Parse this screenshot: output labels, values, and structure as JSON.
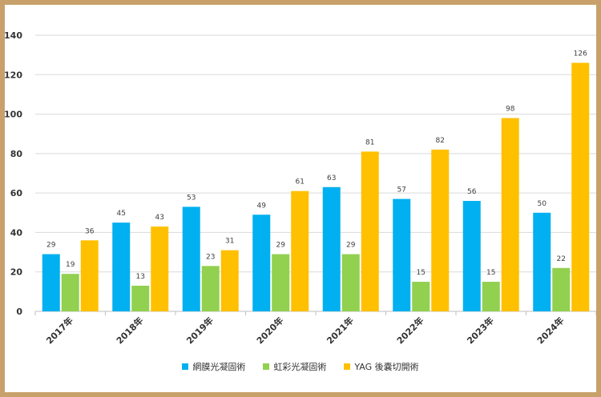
{
  "chart_data": {
    "type": "bar",
    "title": "",
    "xlabel": "",
    "ylabel": "",
    "categories": [
      "2017年",
      "2018年",
      "2019年",
      "2020年",
      "2021年",
      "2022年",
      "2023年",
      "2024年"
    ],
    "series": [
      {
        "name": "網膜光凝固術",
        "color": "#00b0f0",
        "values": [
          29,
          45,
          53,
          49,
          63,
          57,
          56,
          50
        ]
      },
      {
        "name": "虹彩光凝固術",
        "color": "#92d050",
        "values": [
          19,
          13,
          23,
          29,
          29,
          15,
          15,
          22
        ]
      },
      {
        "name": "YAG 後嚢切開術",
        "color": "#ffc000",
        "values": [
          36,
          43,
          31,
          61,
          81,
          82,
          98,
          126
        ]
      }
    ],
    "ylim": [
      0,
      140
    ],
    "yticks": [
      0,
      20,
      40,
      60,
      80,
      100,
      120,
      140
    ],
    "grid": true,
    "legend_position": "bottom",
    "data_labels": true
  }
}
